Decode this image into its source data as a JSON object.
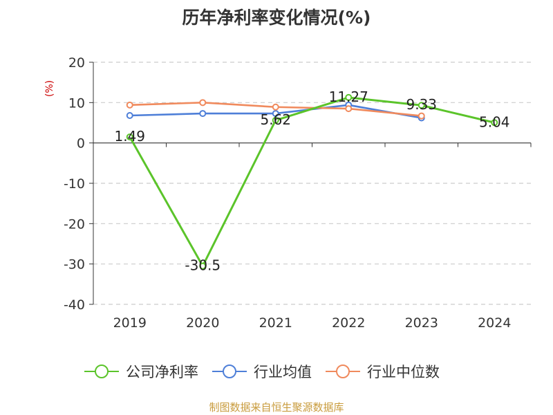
{
  "chart_data": {
    "type": "line",
    "title": "历年净利率变化情况(%)",
    "ylabel": "(%)",
    "xlabel": "",
    "categories": [
      "2019",
      "2020",
      "2021",
      "2022",
      "2023",
      "2024"
    ],
    "ylim": [
      -40,
      20
    ],
    "yticks": [
      20,
      10,
      0,
      -10,
      -20,
      -30,
      -40
    ],
    "grid": true,
    "legend_position": "bottom",
    "series": [
      {
        "name": "公司净利率",
        "color": "#5bc42a",
        "values": [
          1.49,
          -30.5,
          5.62,
          11.27,
          9.33,
          5.04
        ],
        "labels": [
          "1.49",
          "-30.5",
          "5.62",
          "11.27",
          "9.33",
          "5.04"
        ]
      },
      {
        "name": "行业均值",
        "color": "#4e7fd8",
        "values": [
          6.8,
          7.3,
          7.3,
          9.4,
          6.2,
          null
        ]
      },
      {
        "name": "行业中位数",
        "color": "#f08a5d",
        "values": [
          9.4,
          10.0,
          8.9,
          8.5,
          6.7,
          null
        ]
      }
    ]
  },
  "source": "制图数据来自恒生聚源数据库"
}
